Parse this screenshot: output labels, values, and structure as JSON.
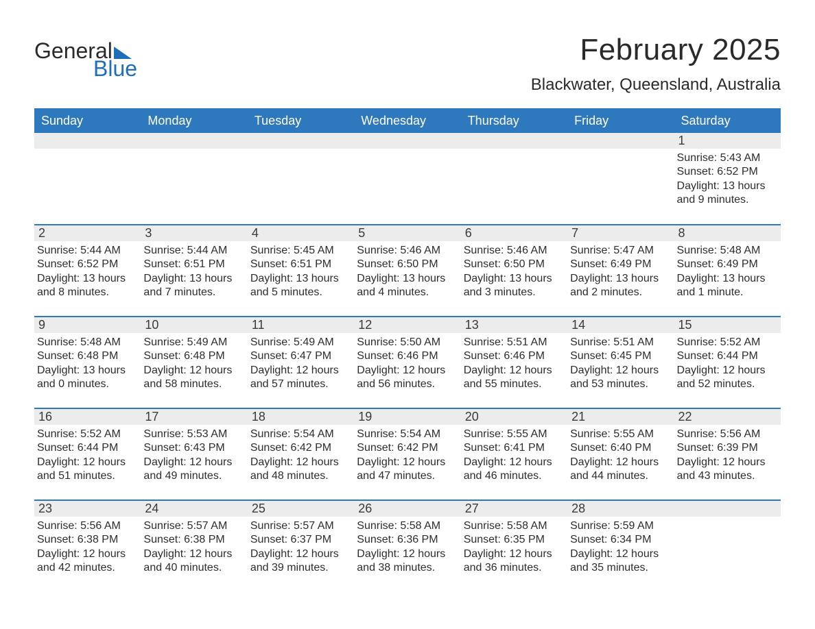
{
  "logo": {
    "top": "General",
    "bottom": "Blue"
  },
  "colors": {
    "brand_blue": "#2e79bd",
    "logo_blue": "#1e6fb8",
    "row_bg": "#ececec",
    "text": "#2d2d2d",
    "page_bg": "#ffffff"
  },
  "typography": {
    "month_title_pt": 44,
    "location_pt": 24,
    "header_pt": 18,
    "daynum_pt": 18,
    "body_pt": 16
  },
  "calendar": {
    "month_title": "February 2025",
    "location": "Blackwater, Queensland, Australia",
    "day_headers": [
      "Sunday",
      "Monday",
      "Tuesday",
      "Wednesday",
      "Thursday",
      "Friday",
      "Saturday"
    ],
    "labels": {
      "sunrise": "Sunrise:",
      "sunset": "Sunset:",
      "daylight": "Daylight:"
    },
    "weeks": [
      [
        null,
        null,
        null,
        null,
        null,
        null,
        {
          "n": "1",
          "sunrise": "5:43 AM",
          "sunset": "6:52 PM",
          "daylight": "13 hours and 9 minutes."
        }
      ],
      [
        {
          "n": "2",
          "sunrise": "5:44 AM",
          "sunset": "6:52 PM",
          "daylight": "13 hours and 8 minutes."
        },
        {
          "n": "3",
          "sunrise": "5:44 AM",
          "sunset": "6:51 PM",
          "daylight": "13 hours and 7 minutes."
        },
        {
          "n": "4",
          "sunrise": "5:45 AM",
          "sunset": "6:51 PM",
          "daylight": "13 hours and 5 minutes."
        },
        {
          "n": "5",
          "sunrise": "5:46 AM",
          "sunset": "6:50 PM",
          "daylight": "13 hours and 4 minutes."
        },
        {
          "n": "6",
          "sunrise": "5:46 AM",
          "sunset": "6:50 PM",
          "daylight": "13 hours and 3 minutes."
        },
        {
          "n": "7",
          "sunrise": "5:47 AM",
          "sunset": "6:49 PM",
          "daylight": "13 hours and 2 minutes."
        },
        {
          "n": "8",
          "sunrise": "5:48 AM",
          "sunset": "6:49 PM",
          "daylight": "13 hours and 1 minute."
        }
      ],
      [
        {
          "n": "9",
          "sunrise": "5:48 AM",
          "sunset": "6:48 PM",
          "daylight": "13 hours and 0 minutes."
        },
        {
          "n": "10",
          "sunrise": "5:49 AM",
          "sunset": "6:48 PM",
          "daylight": "12 hours and 58 minutes."
        },
        {
          "n": "11",
          "sunrise": "5:49 AM",
          "sunset": "6:47 PM",
          "daylight": "12 hours and 57 minutes."
        },
        {
          "n": "12",
          "sunrise": "5:50 AM",
          "sunset": "6:46 PM",
          "daylight": "12 hours and 56 minutes."
        },
        {
          "n": "13",
          "sunrise": "5:51 AM",
          "sunset": "6:46 PM",
          "daylight": "12 hours and 55 minutes."
        },
        {
          "n": "14",
          "sunrise": "5:51 AM",
          "sunset": "6:45 PM",
          "daylight": "12 hours and 53 minutes."
        },
        {
          "n": "15",
          "sunrise": "5:52 AM",
          "sunset": "6:44 PM",
          "daylight": "12 hours and 52 minutes."
        }
      ],
      [
        {
          "n": "16",
          "sunrise": "5:52 AM",
          "sunset": "6:44 PM",
          "daylight": "12 hours and 51 minutes."
        },
        {
          "n": "17",
          "sunrise": "5:53 AM",
          "sunset": "6:43 PM",
          "daylight": "12 hours and 49 minutes."
        },
        {
          "n": "18",
          "sunrise": "5:54 AM",
          "sunset": "6:42 PM",
          "daylight": "12 hours and 48 minutes."
        },
        {
          "n": "19",
          "sunrise": "5:54 AM",
          "sunset": "6:42 PM",
          "daylight": "12 hours and 47 minutes."
        },
        {
          "n": "20",
          "sunrise": "5:55 AM",
          "sunset": "6:41 PM",
          "daylight": "12 hours and 46 minutes."
        },
        {
          "n": "21",
          "sunrise": "5:55 AM",
          "sunset": "6:40 PM",
          "daylight": "12 hours and 44 minutes."
        },
        {
          "n": "22",
          "sunrise": "5:56 AM",
          "sunset": "6:39 PM",
          "daylight": "12 hours and 43 minutes."
        }
      ],
      [
        {
          "n": "23",
          "sunrise": "5:56 AM",
          "sunset": "6:38 PM",
          "daylight": "12 hours and 42 minutes."
        },
        {
          "n": "24",
          "sunrise": "5:57 AM",
          "sunset": "6:38 PM",
          "daylight": "12 hours and 40 minutes."
        },
        {
          "n": "25",
          "sunrise": "5:57 AM",
          "sunset": "6:37 PM",
          "daylight": "12 hours and 39 minutes."
        },
        {
          "n": "26",
          "sunrise": "5:58 AM",
          "sunset": "6:36 PM",
          "daylight": "12 hours and 38 minutes."
        },
        {
          "n": "27",
          "sunrise": "5:58 AM",
          "sunset": "6:35 PM",
          "daylight": "12 hours and 36 minutes."
        },
        {
          "n": "28",
          "sunrise": "5:59 AM",
          "sunset": "6:34 PM",
          "daylight": "12 hours and 35 minutes."
        },
        null
      ]
    ]
  }
}
